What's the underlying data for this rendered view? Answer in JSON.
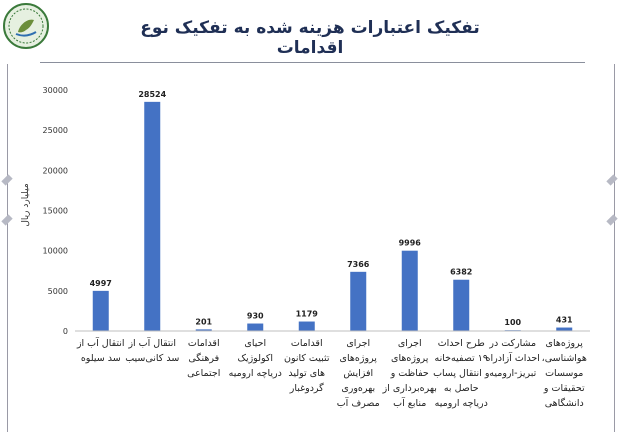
{
  "header": {
    "title": "تفکیک اعتبارات هزینه شده به تفکیک نوع اقدامات",
    "logo_icon": "organization-emblem-icon"
  },
  "chart_data": {
    "type": "bar",
    "title": "",
    "ylabel": "میلیارد ریال",
    "xlabel": "",
    "ylim": [
      0,
      30000
    ],
    "yticks": [
      0,
      5000,
      10000,
      15000,
      20000,
      25000,
      30000
    ],
    "grid": false,
    "bar_color": "#4472c4",
    "categories": [
      [
        "انتقال آب از",
        "سد سیلوه"
      ],
      [
        "انتقال آب از",
        "سد کانی‌سیب"
      ],
      [
        "اقدامات",
        "فرهنگی",
        "اجتماعی"
      ],
      [
        "احیای",
        "اکولوژیک",
        "دریاچه ارومیه"
      ],
      [
        "اقدامات",
        "تثبیت کانون",
        "های تولید",
        "گردوغبار"
      ],
      [
        "اجرای",
        "پروژه‌های",
        "افزایش",
        "بهره‌وری",
        "مصرف آب"
      ],
      [
        "اجرای",
        "پروژه‌های",
        "حفاظت و",
        "بهره‌برداری از",
        "منابع آب"
      ],
      [
        "طرح احداث",
        "۱۹ تصفیه‌خانه",
        "و انتقال پساب",
        "حاصل به",
        "دریاچه ارومیه"
      ],
      [
        "مشارکت در",
        "احداث آزادراه",
        "تبریز-ارومیه"
      ],
      [
        "پروژه‌های",
        "هواشناسی،",
        "موسسات",
        "تحقیقات و",
        "دانشگاهی"
      ]
    ],
    "values": [
      4997,
      28524,
      201,
      930,
      1179,
      7366,
      9996,
      6382,
      100,
      431
    ],
    "data_labels": [
      "4997",
      "28524",
      "201",
      "930",
      "1179",
      "7366",
      "9996",
      "6382",
      "100",
      "431"
    ]
  }
}
